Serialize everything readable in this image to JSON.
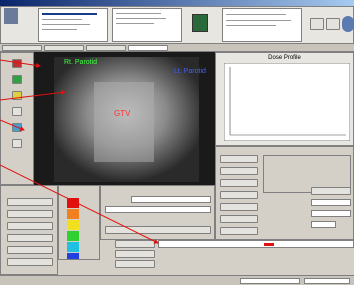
{
  "viewer": {
    "annotations": {
      "right_parotid": "Rt. Parotid",
      "left_parotid": "Lt. Parotid",
      "target": "GTV"
    }
  },
  "profile_panel": {
    "title": "Dose Profile"
  }
}
